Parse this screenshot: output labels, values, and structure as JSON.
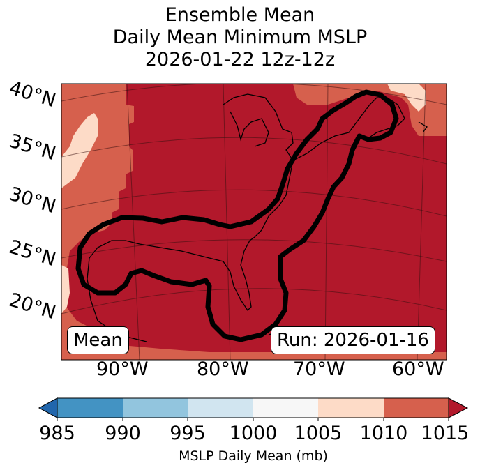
{
  "title": {
    "line1": "Ensemble Mean",
    "line2": "Daily Mean Minimum MSLP",
    "line3": "2026-01-22 12z-12z"
  },
  "map": {
    "lat_labels": [
      "40°N",
      "35°N",
      "30°N",
      "25°N",
      "20°N"
    ],
    "lon_labels": [
      "90°W",
      "80°W",
      "70°W",
      "60°W"
    ],
    "mean_label": "Mean",
    "run_label": "Run: 2026-01-16",
    "fill_colors": {
      "darkred": "#b2182b",
      "red": "#d6604d",
      "peach": "#fddbc7"
    },
    "contour_color": "#000000"
  },
  "colorbar": {
    "ticks": [
      "985",
      "990",
      "995",
      "1000",
      "1005",
      "1010",
      "1015"
    ],
    "label": "MSLP Daily Mean (mb)",
    "colors": [
      "#2166ac",
      "#4393c3",
      "#92c5de",
      "#d1e5f0",
      "#f7f7f7",
      "#fddbc7",
      "#d6604d",
      "#b2182b"
    ]
  }
}
